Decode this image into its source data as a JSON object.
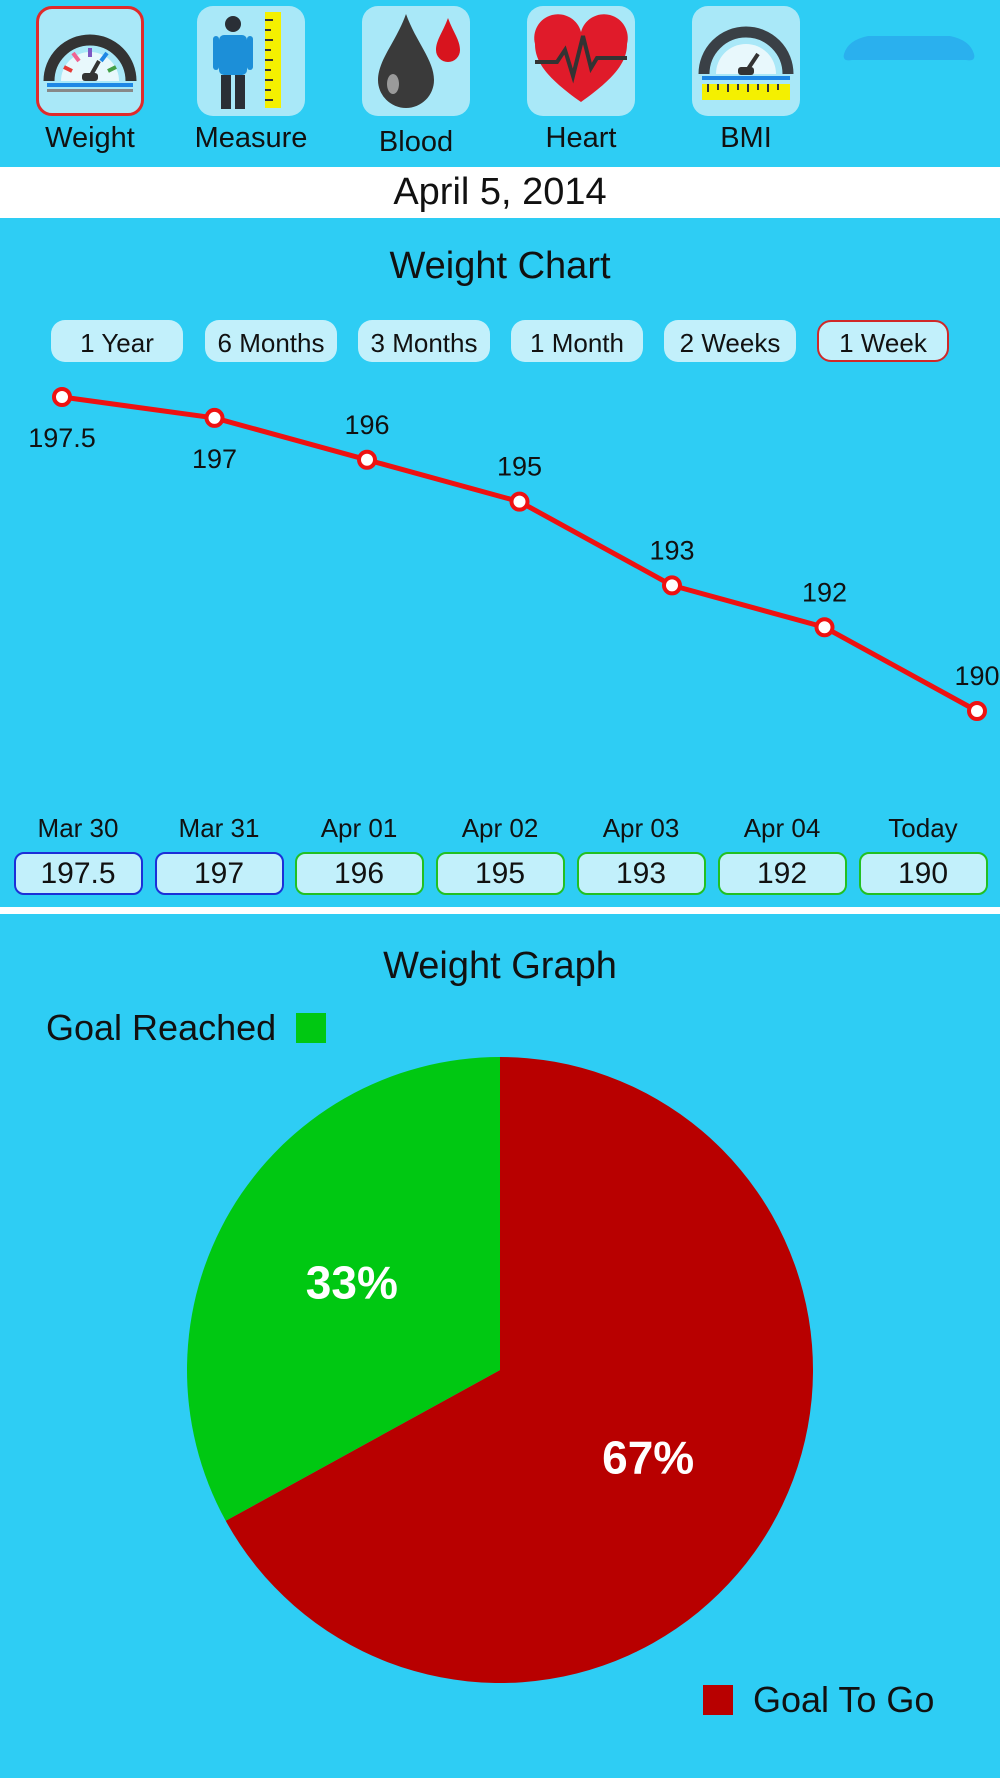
{
  "nav": {
    "items": [
      {
        "label": "Weight",
        "icon": "scale-gauge-icon",
        "selected": true
      },
      {
        "label": "Measure",
        "icon": "body-ruler-icon",
        "selected": false
      },
      {
        "label": "Blood",
        "icon": "blood-drop-icon",
        "selected": false
      },
      {
        "label": "Heart",
        "icon": "heart-pulse-icon",
        "selected": false
      },
      {
        "label": "BMI",
        "icon": "bmi-gauge-icon",
        "selected": false
      }
    ]
  },
  "date": "April 5, 2014",
  "weight_chart": {
    "title": "Weight Chart",
    "ranges": [
      "1 Year",
      "6 Months",
      "3 Months",
      "1 Month",
      "2 Weeks",
      "1 Week"
    ],
    "selected_range": "1 Week"
  },
  "days": [
    {
      "label": "Mar 30",
      "value": "197.5"
    },
    {
      "label": "Mar 31",
      "value": "197"
    },
    {
      "label": "Apr 01",
      "value": "196"
    },
    {
      "label": "Apr 02",
      "value": "195"
    },
    {
      "label": "Apr 03",
      "value": "193"
    },
    {
      "label": "Apr 04",
      "value": "192"
    },
    {
      "label": "Today",
      "value": "190"
    }
  ],
  "weight_graph": {
    "title": "Weight Graph",
    "legend_reached": "Goal Reached",
    "legend_to_go": "Goal To Go",
    "reached_label": "33%",
    "to_go_label": "67%"
  },
  "chart_data": [
    {
      "type": "line",
      "title": "Weight Chart",
      "x": [
        "Mar 30",
        "Mar 31",
        "Apr 01",
        "Apr 02",
        "Apr 03",
        "Apr 04",
        "Today"
      ],
      "series": [
        {
          "values": [
            197.5,
            197,
            196,
            195,
            193,
            192,
            190
          ],
          "color": "#ee1111"
        }
      ],
      "data_labels": [
        "197.5",
        "197",
        "196",
        "195",
        "193",
        "192",
        "190"
      ],
      "grid": false
    },
    {
      "type": "pie",
      "title": "Weight Graph",
      "slices": [
        {
          "name": "Goal Reached",
          "value": 33,
          "label": "33%",
          "color": "#00c812"
        },
        {
          "name": "Goal To Go",
          "value": 67,
          "label": "67%",
          "color": "#b80000"
        }
      ]
    }
  ],
  "colors": {
    "background": "#2ecdf4",
    "tile": "#a9e8f8",
    "accent_red": "#e02a2a",
    "line": "#ee1111",
    "goal_reached": "#00c812",
    "goal_to_go": "#b80000"
  }
}
